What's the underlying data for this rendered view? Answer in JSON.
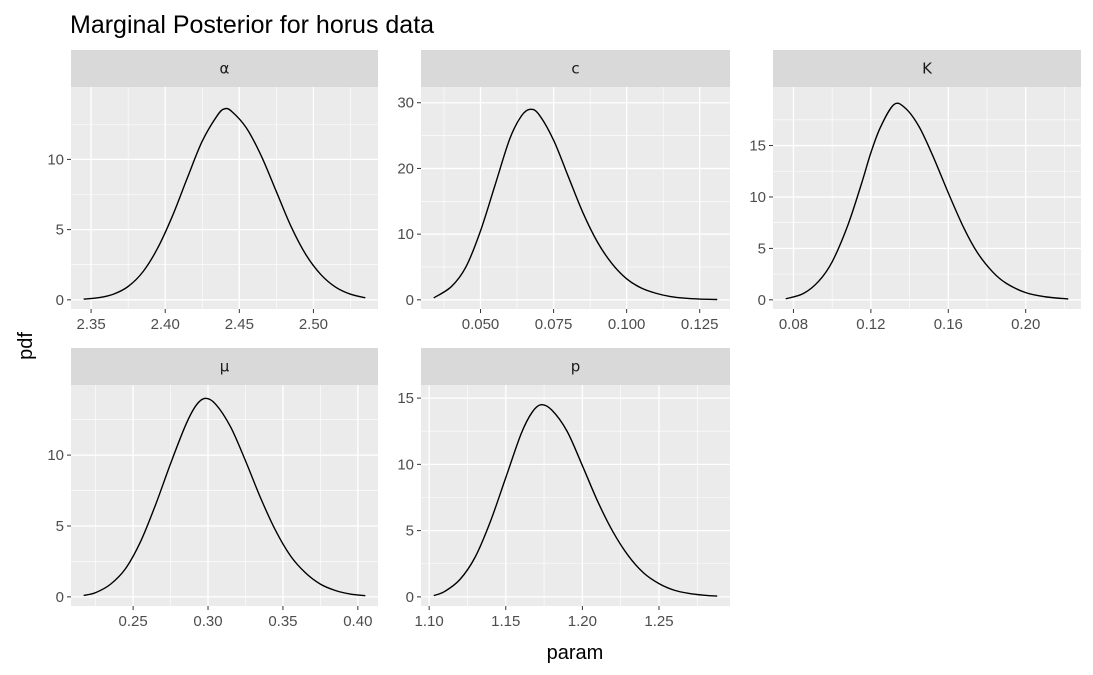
{
  "chart_data": {
    "type": "line",
    "title": "Marginal Posterior for horus data",
    "xlabel": "param",
    "ylabel": "pdf",
    "grid": true,
    "panels": [
      {
        "name": "α",
        "xlim": [
          2.345,
          2.535
        ],
        "ylim": [
          0,
          14.5
        ],
        "xticks": [
          2.35,
          2.4,
          2.45,
          2.5
        ],
        "xtick_labels": [
          "2.35",
          "2.40",
          "2.45",
          "2.50"
        ],
        "yticks": [
          0,
          5,
          10
        ],
        "ytick_labels": [
          "0",
          "5",
          "10"
        ],
        "peak": {
          "x": 2.44,
          "y": 13.6
        },
        "x": [
          2.345,
          2.355,
          2.365,
          2.375,
          2.385,
          2.395,
          2.405,
          2.415,
          2.425,
          2.435,
          2.44,
          2.445,
          2.455,
          2.465,
          2.475,
          2.485,
          2.495,
          2.505,
          2.515,
          2.525,
          2.535
        ],
        "y": [
          0.05,
          0.15,
          0.4,
          0.95,
          2.0,
          3.7,
          6.0,
          8.7,
          11.3,
          13.1,
          13.6,
          13.4,
          12.2,
          10.2,
          7.7,
          5.2,
          3.2,
          1.8,
          0.9,
          0.4,
          0.15
        ]
      },
      {
        "name": "c",
        "xlim": [
          0.034,
          0.131
        ],
        "ylim": [
          0,
          31
        ],
        "xticks": [
          0.05,
          0.075,
          0.1,
          0.125
        ],
        "xtick_labels": [
          "0.050",
          "0.075",
          "0.100",
          "0.125"
        ],
        "yticks": [
          0,
          10,
          20,
          30
        ],
        "ytick_labels": [
          "0",
          "10",
          "20",
          "30"
        ],
        "peak": {
          "x": 0.067,
          "y": 29.0
        },
        "x": [
          0.034,
          0.04,
          0.045,
          0.05,
          0.055,
          0.06,
          0.064,
          0.067,
          0.07,
          0.075,
          0.08,
          0.085,
          0.09,
          0.095,
          0.1,
          0.105,
          0.11,
          0.115,
          0.12,
          0.125,
          0.131
        ],
        "y": [
          0.3,
          2.0,
          5.0,
          10.5,
          17.5,
          24.5,
          28.0,
          29.0,
          28.2,
          24.3,
          18.8,
          13.3,
          8.8,
          5.5,
          3.2,
          1.8,
          1.0,
          0.5,
          0.25,
          0.12,
          0.05
        ]
      },
      {
        "name": "K",
        "xlim": [
          0.076,
          0.222
        ],
        "ylim": [
          0,
          19.8
        ],
        "xticks": [
          0.08,
          0.12,
          0.16,
          0.2
        ],
        "xtick_labels": [
          "0.08",
          "0.12",
          "0.16",
          "0.20"
        ],
        "yticks": [
          0,
          5,
          10,
          15
        ],
        "ytick_labels": [
          "0",
          "5",
          "10",
          "15"
        ],
        "peak": {
          "x": 0.132,
          "y": 19.0
        },
        "x": [
          0.076,
          0.085,
          0.093,
          0.1,
          0.108,
          0.115,
          0.12,
          0.125,
          0.132,
          0.138,
          0.145,
          0.152,
          0.16,
          0.168,
          0.175,
          0.183,
          0.19,
          0.2,
          0.21,
          0.222
        ],
        "y": [
          0.1,
          0.6,
          1.8,
          3.7,
          7.2,
          11.2,
          14.3,
          16.8,
          19.0,
          18.6,
          16.8,
          14.0,
          10.4,
          7.0,
          4.6,
          2.7,
          1.6,
          0.7,
          0.3,
          0.08
        ]
      },
      {
        "name": "μ",
        "xlim": [
          0.217,
          0.405
        ],
        "ylim": [
          0,
          14.3
        ],
        "xticks": [
          0.25,
          0.3,
          0.35,
          0.4
        ],
        "xtick_labels": [
          "0.25",
          "0.30",
          "0.35",
          "0.40"
        ],
        "yticks": [
          0,
          5,
          10
        ],
        "ytick_labels": [
          "0",
          "5",
          "10"
        ],
        "peak": {
          "x": 0.298,
          "y": 14.0
        },
        "x": [
          0.217,
          0.225,
          0.235,
          0.245,
          0.255,
          0.265,
          0.275,
          0.285,
          0.292,
          0.298,
          0.305,
          0.315,
          0.325,
          0.335,
          0.345,
          0.355,
          0.365,
          0.375,
          0.385,
          0.395,
          0.405
        ],
        "y": [
          0.1,
          0.3,
          0.9,
          2.0,
          3.9,
          6.5,
          9.4,
          12.1,
          13.5,
          14.0,
          13.6,
          12.0,
          9.6,
          7.0,
          4.7,
          2.9,
          1.7,
          0.9,
          0.45,
          0.2,
          0.08
        ]
      },
      {
        "name": "p",
        "xlim": [
          1.103,
          1.288
        ],
        "ylim": [
          0,
          15.3
        ],
        "xticks": [
          1.1,
          1.15,
          1.2,
          1.25
        ],
        "xtick_labels": [
          "1.10",
          "1.15",
          "1.20",
          "1.25"
        ],
        "yticks": [
          0,
          5,
          10,
          15
        ],
        "ytick_labels": [
          "0",
          "5",
          "10",
          "15"
        ],
        "peak": {
          "x": 1.173,
          "y": 14.5
        },
        "x": [
          1.103,
          1.11,
          1.12,
          1.13,
          1.14,
          1.15,
          1.16,
          1.167,
          1.173,
          1.18,
          1.19,
          1.2,
          1.21,
          1.22,
          1.23,
          1.24,
          1.25,
          1.26,
          1.27,
          1.28,
          1.288
        ],
        "y": [
          0.1,
          0.4,
          1.3,
          3.0,
          5.7,
          9.0,
          12.3,
          13.9,
          14.5,
          14.1,
          12.5,
          9.9,
          7.2,
          4.9,
          3.1,
          1.8,
          1.0,
          0.5,
          0.25,
          0.12,
          0.06
        ]
      }
    ]
  }
}
